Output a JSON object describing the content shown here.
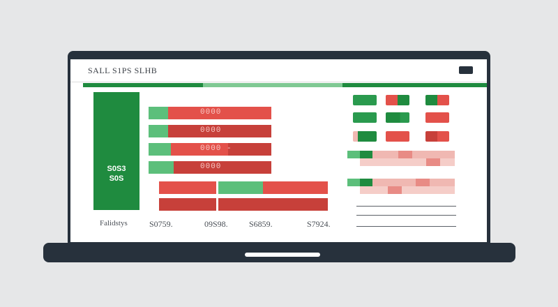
{
  "window": {
    "title": "SALL S1PS SLHB"
  },
  "sidebar": {
    "value": "S0S3\nS0S"
  },
  "chart_rows": [
    {
      "label": "0000",
      "green_fraction": 0.16
    },
    {
      "label": "0000",
      "green_fraction": 0.14
    },
    {
      "label": "0000 -",
      "green_fraction": 0.18
    },
    {
      "label": "0000",
      "green_fraction": 0.2
    }
  ],
  "summary_bars": {
    "row1": {
      "green_fraction": 0.35
    },
    "row2": {
      "green_fraction": 0.0
    }
  },
  "footer": {
    "label": "Falidstys",
    "values": [
      "S0759.",
      "09S98.",
      "S6859.",
      "S7924."
    ]
  },
  "colors": {
    "green": "#1f8b3f",
    "light_green": "#5cbf7b",
    "red": "#e3514a",
    "dark_red": "#c7403a",
    "pink": "#f0b8b2",
    "frame": "#27313c"
  }
}
